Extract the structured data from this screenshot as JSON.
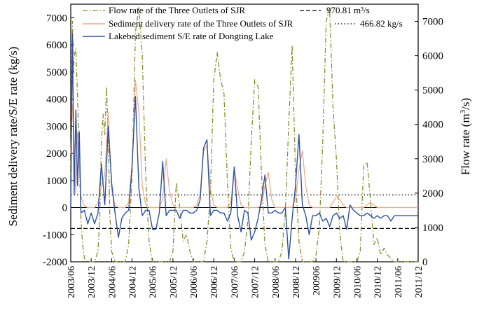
{
  "chart_data": {
    "type": "line",
    "y_left_label": "Sediment delivery rate/S/E rate (kg/s)",
    "y_right_label": "Flow rate (m",
    "y_right_label_sup": "3",
    "y_right_label_end": "/s)",
    "y_left_range": [
      -2000,
      7500
    ],
    "y_left_ticks": [
      "-2000",
      "-1000",
      "0",
      "1000",
      "2000",
      "3000",
      "4000",
      "5000",
      "6000",
      "7000"
    ],
    "y_right_range": [
      0,
      7500
    ],
    "y_right_ticks": [
      "0",
      "1000",
      "2000",
      "3000",
      "4000",
      "5000",
      "6000",
      "7000"
    ],
    "x_tick_labels": [
      "2003/06",
      "2003/12",
      "2004/06",
      "2004/12",
      "2005/06",
      "2005/12",
      "2006/06",
      "2006/12",
      "2007/06",
      "2007/12",
      "2008/06",
      "2008/12",
      "200906",
      "2009/12",
      "2010/06",
      "2010/12",
      "2011/06",
      "2011/12"
    ],
    "legend": [
      {
        "text": "Flow rate of the Three Outlets of SJR",
        "color": "#8b8b2a",
        "style": "dashdot"
      },
      {
        "text": "Sediment delivery rate of the Three Outlets of SJR",
        "color": "#f4a582",
        "style": "solid"
      },
      {
        "text": "Lakebed sediment S/E rate of Dongting Lake",
        "color": "#2b50a8",
        "style": "solid"
      }
    ],
    "reference_lines": [
      {
        "label": "970.81 m³/s",
        "style": "dashed",
        "y_flow": 970.81
      },
      {
        "label": "466.82 kg/s",
        "style": "dotted",
        "y_sed": 466.82
      }
    ],
    "series": [
      {
        "name": "Flow rate of the Three Outlets of SJR",
        "axis": "right",
        "color": "#8b8b2a",
        "x": [
          0,
          0.2,
          0.5,
          0.8,
          1,
          1.5,
          2,
          2.5,
          3,
          3.5,
          4,
          5,
          6,
          7,
          8,
          8.5,
          9,
          9.5,
          10,
          10.5,
          11,
          11.5,
          12,
          13,
          14,
          15,
          16,
          17,
          18,
          19,
          20,
          21,
          22,
          23,
          24,
          25,
          26,
          27,
          28,
          29,
          30,
          31,
          32,
          33,
          34,
          35,
          36,
          37,
          38,
          39,
          40,
          41,
          42,
          43,
          44,
          45,
          46,
          47,
          48,
          49,
          50,
          51,
          52,
          53,
          54,
          55,
          56,
          57,
          58,
          59,
          60,
          61,
          62,
          63,
          64,
          65,
          66,
          67,
          68,
          69,
          70,
          71,
          72,
          73,
          74,
          75,
          76,
          77,
          78,
          79,
          80,
          81,
          82,
          83,
          84,
          85,
          86,
          87,
          88,
          89,
          90,
          91,
          92,
          93,
          94,
          95,
          96,
          97,
          98,
          99,
          100,
          101,
          102
        ],
        "values": [
          2500,
          5000,
          7000,
          5500,
          6000,
          6200,
          4800,
          3000,
          1200,
          500,
          100,
          0,
          0,
          0,
          300,
          1200,
          3500,
          4300,
          3700,
          5100,
          3600,
          1300,
          300,
          0,
          0,
          0,
          0,
          500,
          2500,
          6700,
          7400,
          6000,
          2500,
          600,
          0,
          0,
          0,
          0,
          0,
          0,
          300,
          2300,
          1600,
          600,
          800,
          300,
          0,
          0,
          0,
          0,
          600,
          2000,
          5300,
          6100,
          5300,
          4900,
          2300,
          400,
          0,
          0,
          0,
          300,
          1200,
          3500,
          5300,
          5100,
          2600,
          500,
          0,
          0,
          0,
          0,
          300,
          1500,
          4000,
          6300,
          2500,
          600,
          0,
          0,
          0,
          0,
          200,
          1000,
          3500,
          7000,
          7400,
          4500,
          3000,
          800,
          0,
          0,
          0,
          0,
          0,
          300,
          2800,
          2900,
          1800,
          500,
          700,
          200,
          400,
          200,
          100,
          0,
          0,
          0,
          0,
          0,
          0,
          0,
          0
        ]
      },
      {
        "name": "Sediment delivery rate of the Three Outlets of SJR",
        "axis": "left",
        "color": "#f4a582",
        "x": [
          0,
          0.5,
          1,
          1.5,
          2,
          2.5,
          3,
          4,
          5,
          6,
          7,
          8,
          9,
          10,
          11,
          12,
          13,
          14,
          15,
          16,
          17,
          18,
          19,
          20,
          21,
          22,
          23,
          24,
          25,
          26,
          27,
          28,
          29,
          30,
          31,
          32,
          33,
          34,
          35,
          36,
          37,
          38,
          39,
          40,
          41,
          42,
          43,
          44,
          45,
          46,
          47,
          48,
          49,
          50,
          51,
          52,
          53,
          54,
          55,
          56,
          57,
          58,
          59,
          60,
          61,
          62,
          63,
          64,
          65,
          66,
          67,
          68,
          69,
          70,
          71,
          72,
          73,
          74,
          75,
          76,
          77,
          78,
          79,
          80,
          81,
          82,
          83,
          84,
          85,
          86,
          87,
          88,
          89,
          90,
          91,
          92,
          93,
          94,
          95,
          96,
          97,
          98,
          99,
          100,
          101,
          102
        ],
        "values": [
          2000,
          3800,
          2200,
          500,
          2800,
          1500,
          400,
          50,
          0,
          0,
          0,
          200,
          800,
          1200,
          3500,
          700,
          100,
          0,
          0,
          0,
          200,
          1600,
          4700,
          3500,
          800,
          100,
          0,
          0,
          0,
          0,
          300,
          1800,
          600,
          100,
          0,
          0,
          0,
          0,
          0,
          0,
          100,
          500,
          2100,
          2300,
          700,
          100,
          0,
          0,
          0,
          0,
          200,
          1400,
          700,
          100,
          0,
          0,
          0,
          0,
          0,
          100,
          800,
          1300,
          300,
          0,
          0,
          0,
          0,
          0,
          0,
          300,
          1400,
          2100,
          800,
          100,
          0,
          0,
          0,
          0,
          0,
          0,
          200,
          400,
          300,
          100,
          0,
          0,
          0,
          0,
          0,
          0,
          100,
          200,
          100,
          0,
          0,
          0,
          0,
          0,
          0,
          0,
          0,
          0,
          0,
          0,
          0,
          0
        ]
      },
      {
        "name": "Lakebed sediment S/E rate of Dongting Lake",
        "axis": "left",
        "color": "#2b50a8",
        "x": [
          0,
          0.5,
          1,
          1.5,
          2,
          2.5,
          3,
          4,
          5,
          6,
          7,
          8,
          9,
          10,
          11,
          12,
          13,
          14,
          15,
          16,
          17,
          18,
          19,
          20,
          21,
          22,
          23,
          24,
          25,
          26,
          27,
          28,
          29,
          30,
          31,
          32,
          33,
          34,
          35,
          36,
          37,
          38,
          39,
          40,
          41,
          42,
          43,
          44,
          45,
          46,
          47,
          48,
          49,
          50,
          51,
          52,
          53,
          54,
          55,
          56,
          57,
          58,
          59,
          60,
          61,
          62,
          63,
          64,
          65,
          66,
          67,
          68,
          69,
          70,
          71,
          72,
          73,
          74,
          75,
          76,
          77,
          78,
          79,
          80,
          81,
          82,
          83,
          84,
          85,
          86,
          87,
          88,
          89,
          90,
          91,
          92,
          93,
          94,
          95,
          96,
          97,
          98,
          99,
          100,
          101,
          102
        ],
        "values": [
          -100,
          6400,
          500,
          3600,
          800,
          2800,
          -200,
          -100,
          -600,
          -200,
          -600,
          -200,
          1600,
          100,
          3000,
          900,
          -200,
          -1100,
          -400,
          -200,
          -100,
          1500,
          4100,
          700,
          -300,
          -100,
          -100,
          -800,
          -800,
          -200,
          1700,
          -300,
          -100,
          -100,
          -100,
          -400,
          -100,
          -100,
          -200,
          -200,
          -100,
          300,
          2200,
          2500,
          -300,
          -100,
          -100,
          -200,
          -200,
          -500,
          -200,
          1500,
          -300,
          -900,
          -100,
          -200,
          -1200,
          -900,
          -400,
          300,
          1200,
          -200,
          -200,
          -100,
          -200,
          -200,
          0,
          -1900,
          -400,
          800,
          2700,
          100,
          -300,
          -1000,
          -300,
          -300,
          -200,
          -500,
          -400,
          -700,
          -300,
          -200,
          -400,
          -300,
          -800,
          100,
          -100,
          -200,
          -300,
          -300,
          -200,
          -300,
          -400,
          -300,
          -400,
          -300,
          -300,
          -500,
          -300,
          -300,
          -300,
          -300,
          -300,
          -300,
          -300,
          -300
        ]
      }
    ]
  }
}
